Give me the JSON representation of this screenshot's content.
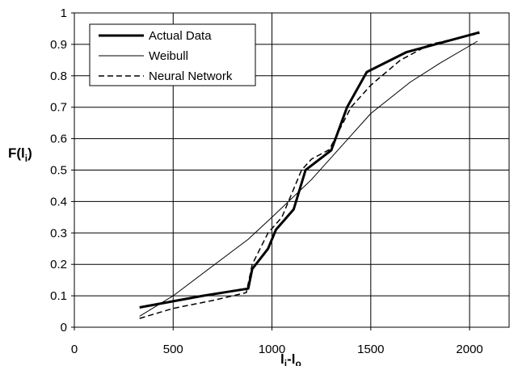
{
  "chart_data": {
    "type": "line",
    "xlim": [
      0,
      2200
    ],
    "ylim": [
      0,
      1
    ],
    "x_ticks": [
      "0",
      "500",
      "1000",
      "1500",
      "2000"
    ],
    "y_ticks": [
      "0",
      "0.1",
      "0.2",
      "0.3",
      "0.4",
      "0.5",
      "0.6",
      "0.7",
      "0.8",
      "0.9",
      "1"
    ],
    "ylabel": {
      "main": "F(l",
      "sub": "i",
      "close": ")"
    },
    "xlabel": {
      "a": "l",
      "a_sub": "i",
      "dash": "-l",
      "b_sub": "o"
    },
    "grid": true,
    "legend_position": "top-left",
    "series": [
      {
        "name": "Actual Data",
        "style": "thick-solid",
        "points": [
          [
            330,
            0.063
          ],
          [
            650,
            0.1
          ],
          [
            880,
            0.123
          ],
          [
            900,
            0.185
          ],
          [
            980,
            0.25
          ],
          [
            1020,
            0.31
          ],
          [
            1110,
            0.375
          ],
          [
            1170,
            0.5
          ],
          [
            1300,
            0.563
          ],
          [
            1380,
            0.7
          ],
          [
            1480,
            0.812
          ],
          [
            1680,
            0.875
          ],
          [
            2050,
            0.938
          ]
        ]
      },
      {
        "name": "Weibull",
        "style": "thin-solid",
        "points": [
          [
            330,
            0.035
          ],
          [
            500,
            0.1
          ],
          [
            880,
            0.28
          ],
          [
            1000,
            0.35
          ],
          [
            1200,
            0.47
          ],
          [
            1400,
            0.61
          ],
          [
            1500,
            0.68
          ],
          [
            1700,
            0.78
          ],
          [
            1850,
            0.84
          ],
          [
            2040,
            0.91
          ]
        ]
      },
      {
        "name": "Neural Network",
        "style": "dashed",
        "points": [
          [
            330,
            0.028
          ],
          [
            500,
            0.06
          ],
          [
            700,
            0.085
          ],
          [
            870,
            0.11
          ],
          [
            900,
            0.2
          ],
          [
            980,
            0.3
          ],
          [
            1050,
            0.35
          ],
          [
            1150,
            0.5
          ],
          [
            1200,
            0.535
          ],
          [
            1290,
            0.565
          ],
          [
            1400,
            0.7
          ],
          [
            1500,
            0.77
          ],
          [
            1650,
            0.85
          ],
          [
            1800,
            0.9
          ],
          [
            2050,
            0.935
          ]
        ]
      }
    ]
  }
}
